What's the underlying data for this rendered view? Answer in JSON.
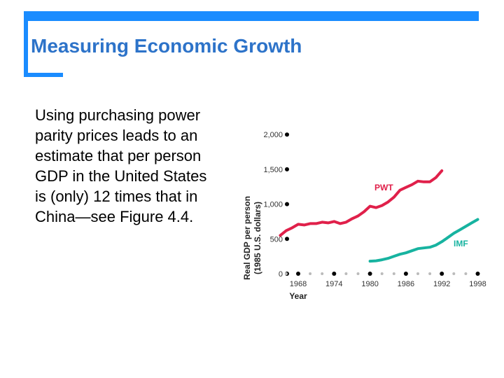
{
  "slide": {
    "title": "Measuring Economic Growth",
    "body": "Using purchasing power parity prices leads to an estimate that per person GDP in the United States is (only) 12 times that in China—see Figure 4.4."
  },
  "colors": {
    "accent": "#1a8cff",
    "title": "#2d73c9",
    "pwt": "#e0204a",
    "imf": "#17b3a0"
  },
  "chart_data": {
    "type": "line",
    "xlabel": "Year",
    "ylabel": [
      "Real GDP per person",
      "(1985 U.S. dollars)"
    ],
    "xlim": [
      1965,
      1998
    ],
    "ylim": [
      0,
      2000
    ],
    "x_ticks": [
      1968,
      1974,
      1980,
      1986,
      1992,
      1998
    ],
    "y_ticks": [
      {
        "value": 0,
        "label": "0"
      },
      {
        "value": 500,
        "label": "500"
      },
      {
        "value": 1000,
        "label": "1,000"
      },
      {
        "value": 1500,
        "label": "1,500"
      },
      {
        "value": 2000,
        "label": "2,000"
      }
    ],
    "series": [
      {
        "name": "PWT",
        "color": "#e0204a",
        "x": [
          1965,
          1966,
          1967,
          1968,
          1969,
          1970,
          1971,
          1972,
          1973,
          1974,
          1975,
          1976,
          1977,
          1978,
          1979,
          1980,
          1981,
          1982,
          1983,
          1984,
          1985,
          1986,
          1987,
          1988,
          1989,
          1990,
          1991,
          1992
        ],
        "values": [
          550,
          620,
          660,
          710,
          700,
          720,
          720,
          740,
          730,
          750,
          720,
          740,
          790,
          830,
          890,
          970,
          950,
          980,
          1030,
          1100,
          1200,
          1240,
          1280,
          1330,
          1320,
          1320,
          1380,
          1480
        ]
      },
      {
        "name": "IMF",
        "color": "#17b3a0",
        "x": [
          1980,
          1981,
          1982,
          1983,
          1984,
          1985,
          1986,
          1987,
          1988,
          1989,
          1990,
          1991,
          1992,
          1993,
          1994,
          1995,
          1996,
          1997,
          1998
        ],
        "values": [
          180,
          185,
          200,
          220,
          250,
          280,
          300,
          330,
          360,
          370,
          380,
          410,
          460,
          520,
          580,
          630,
          680,
          730,
          780
        ]
      }
    ]
  }
}
